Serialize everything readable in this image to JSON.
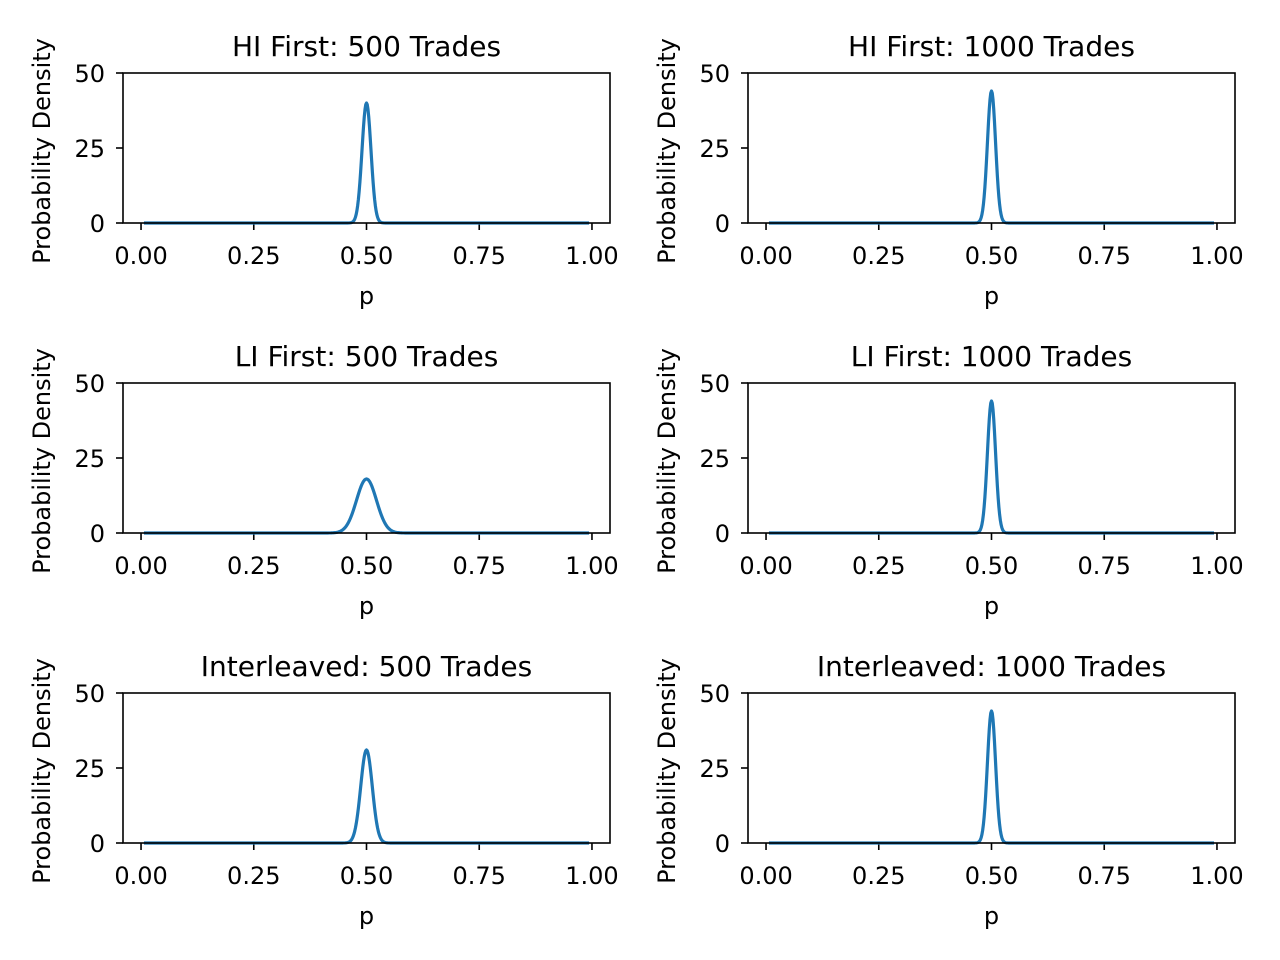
{
  "chart_data": [
    {
      "type": "line",
      "title": "HI First: 500 Trades",
      "xlabel": "p",
      "ylabel": "Probability Density",
      "xlim": [
        -0.04,
        1.04
      ],
      "ylim": [
        0,
        50
      ],
      "xticks": [
        "0.00",
        "0.25",
        "0.50",
        "0.75",
        "1.00"
      ],
      "yticks": [
        "0",
        "25",
        "50"
      ],
      "grid": false,
      "series": [
        {
          "color": "#1f77b4",
          "x_range": [
            0.01,
            0.99
          ],
          "peak_x": 0.5,
          "peak_y": 40
        }
      ]
    },
    {
      "type": "line",
      "title": "HI First: 1000 Trades",
      "xlabel": "p",
      "ylabel": "Probability Density",
      "xlim": [
        -0.04,
        1.04
      ],
      "ylim": [
        0,
        50
      ],
      "xticks": [
        "0.00",
        "0.25",
        "0.50",
        "0.75",
        "1.00"
      ],
      "yticks": [
        "0",
        "25",
        "50"
      ],
      "grid": false,
      "series": [
        {
          "color": "#1f77b4",
          "x_range": [
            0.01,
            0.99
          ],
          "peak_x": 0.5,
          "peak_y": 44
        }
      ]
    },
    {
      "type": "line",
      "title": "LI First: 500 Trades",
      "xlabel": "p",
      "ylabel": "Probability Density",
      "xlim": [
        -0.04,
        1.04
      ],
      "ylim": [
        0,
        50
      ],
      "xticks": [
        "0.00",
        "0.25",
        "0.50",
        "0.75",
        "1.00"
      ],
      "yticks": [
        "0",
        "25",
        "50"
      ],
      "grid": false,
      "series": [
        {
          "color": "#1f77b4",
          "x_range": [
            0.01,
            0.99
          ],
          "peak_x": 0.5,
          "peak_y": 18
        }
      ]
    },
    {
      "type": "line",
      "title": "LI First: 1000 Trades",
      "xlabel": "p",
      "ylabel": "Probability Density",
      "xlim": [
        -0.04,
        1.04
      ],
      "ylim": [
        0,
        50
      ],
      "xticks": [
        "0.00",
        "0.25",
        "0.50",
        "0.75",
        "1.00"
      ],
      "yticks": [
        "0",
        "25",
        "50"
      ],
      "grid": false,
      "series": [
        {
          "color": "#1f77b4",
          "x_range": [
            0.01,
            0.99
          ],
          "peak_x": 0.5,
          "peak_y": 44
        }
      ]
    },
    {
      "type": "line",
      "title": "Interleaved: 500 Trades",
      "xlabel": "p",
      "ylabel": "Probability Density",
      "xlim": [
        -0.04,
        1.04
      ],
      "ylim": [
        0,
        50
      ],
      "xticks": [
        "0.00",
        "0.25",
        "0.50",
        "0.75",
        "1.00"
      ],
      "yticks": [
        "0",
        "25",
        "50"
      ],
      "grid": false,
      "series": [
        {
          "color": "#1f77b4",
          "x_range": [
            0.01,
            0.99
          ],
          "peak_x": 0.5,
          "peak_y": 31
        }
      ]
    },
    {
      "type": "line",
      "title": "Interleaved: 1000 Trades",
      "xlabel": "p",
      "ylabel": "Probability Density",
      "xlim": [
        -0.04,
        1.04
      ],
      "ylim": [
        0,
        50
      ],
      "xticks": [
        "0.00",
        "0.25",
        "0.50",
        "0.75",
        "1.00"
      ],
      "yticks": [
        "0",
        "25",
        "50"
      ],
      "grid": false,
      "series": [
        {
          "color": "#1f77b4",
          "x_range": [
            0.01,
            0.99
          ],
          "peak_x": 0.5,
          "peak_y": 44
        }
      ]
    }
  ]
}
